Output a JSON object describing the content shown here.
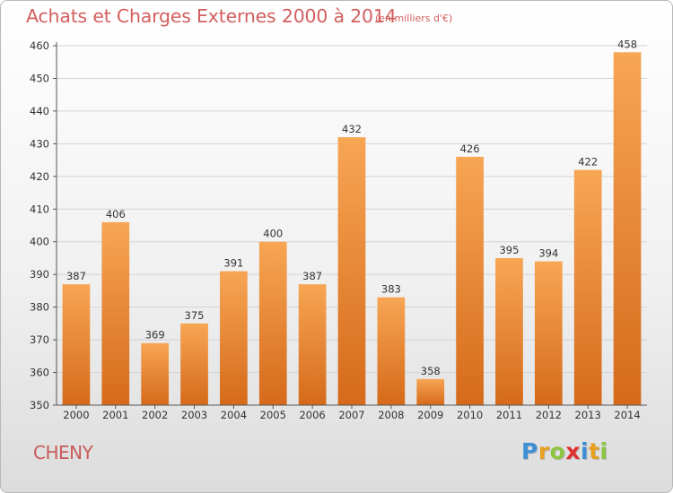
{
  "title": "Achats et Charges Externes 2000 à 2014",
  "subtitle": "(en milliers d'€)",
  "location": "CHENY",
  "logo": {
    "letters": [
      "P",
      "r",
      "o",
      "x",
      "i",
      "t",
      "i"
    ],
    "colors": [
      "#3f8fd6",
      "#e8a020",
      "#8cc63f",
      "#e03030",
      "#3f8fd6",
      "#e8a020",
      "#8cc63f"
    ]
  },
  "colors": {
    "bar_top": "#f7a654",
    "bar_bottom": "#d56a1a",
    "title": "#d35f5f",
    "grid": "#d4d4d4"
  },
  "chart_data": {
    "type": "bar",
    "categories": [
      "2000",
      "2001",
      "2002",
      "2003",
      "2004",
      "2005",
      "2006",
      "2007",
      "2008",
      "2009",
      "2010",
      "2011",
      "2012",
      "2013",
      "2014"
    ],
    "values": [
      387,
      406,
      369,
      375,
      391,
      400,
      387,
      432,
      383,
      358,
      426,
      395,
      394,
      422,
      458
    ],
    "title": "Achats et Charges Externes 2000 à 2014",
    "xlabel": "",
    "ylabel": "",
    "ylim": [
      350,
      460
    ],
    "yticks": [
      350,
      360,
      370,
      380,
      390,
      400,
      410,
      420,
      430,
      440,
      450,
      460
    ],
    "grid": true,
    "data_labels": true
  }
}
